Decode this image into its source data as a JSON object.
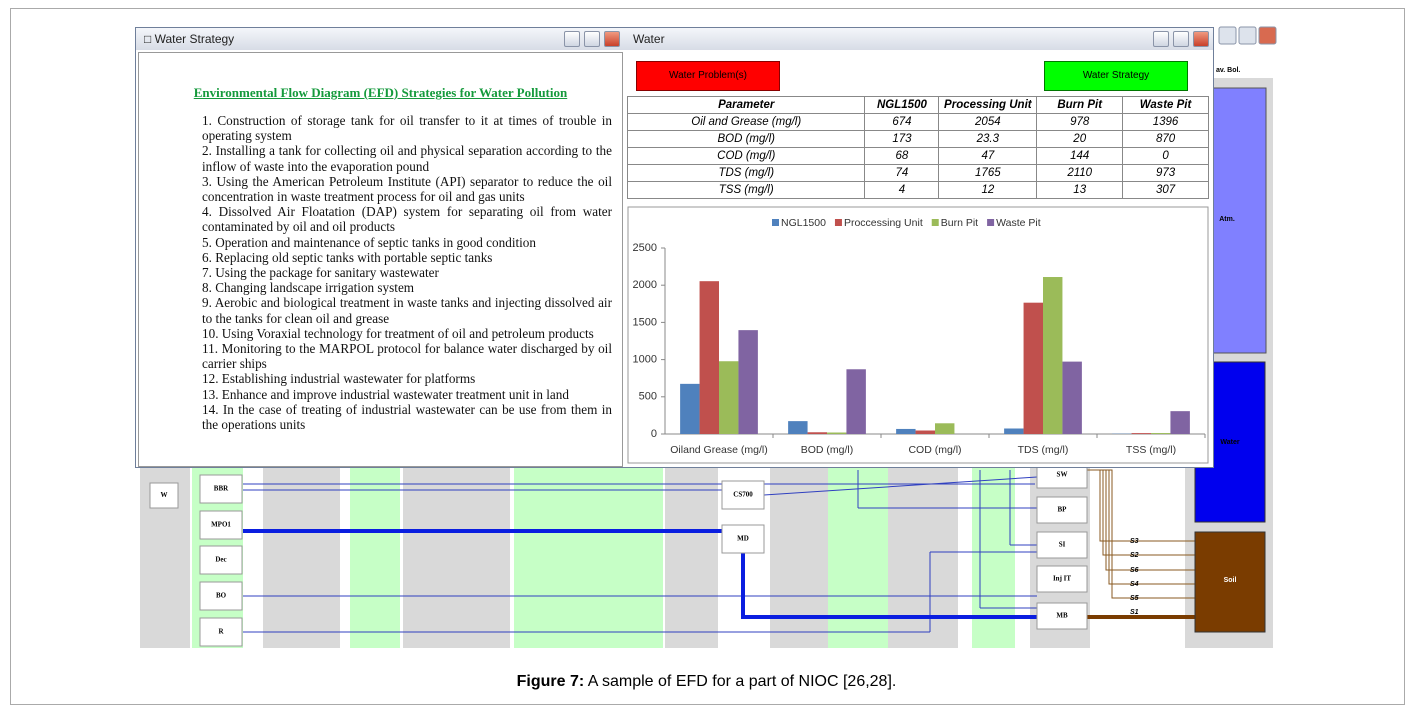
{
  "strategy_window": {
    "title": "Water Strategy",
    "heading": "Environmental Flow Diagram (EFD) Strategies for Water Pollution",
    "items": [
      "1. Construction of storage tank for oil transfer to it at times of trouble in operating system",
      "2. Installing a tank for collecting oil and physical separation according to the inflow of waste into the evaporation pound",
      "3. Using the American Petroleum Institute (API) separator to reduce the oil concentration in waste treatment process for oil and gas units",
      "4. Dissolved Air Floatation (DAP) system for separating oil from water contaminated by oil and oil products",
      "5. Operation and maintenance of septic tanks in good condition",
      "6. Replacing old septic tanks with portable septic tanks",
      "7. Using the package for sanitary wastewater",
      "8. Changing landscape irrigation system",
      "9. Aerobic and biological treatment in waste tanks and injecting dissolved air to the tanks for clean oil and grease",
      "10. Using Voraxial technology for treatment of oil and petroleum products",
      "11. Monitoring to the MARPOL protocol for balance water discharged by oil carrier ships",
      "12. Establishing industrial wastewater for platforms",
      "13. Enhance and improve industrial wastewater treatment unit in land",
      "14. In the case of treating of industrial wastewater can be use from them in the operations units"
    ]
  },
  "water_window": {
    "title": "Water",
    "buttons": [
      "Water Problem(s)",
      "Water Strategy"
    ],
    "table": {
      "header": [
        "Parameter",
        "NGL1500",
        "Processing Unit",
        "Burn Pit",
        "Waste Pit"
      ],
      "rows": [
        [
          "Oil and Grease (mg/l)",
          "674",
          "2054",
          "978",
          "1396"
        ],
        [
          "BOD (mg/l)",
          "173",
          "23.3",
          "20",
          "870"
        ],
        [
          "COD (mg/l)",
          "68",
          "47",
          "144",
          "0"
        ],
        [
          "TDS (mg/l)",
          "74",
          "1765",
          "2110",
          "973"
        ],
        [
          "TSS (mg/l)",
          "4",
          "12",
          "13",
          "307"
        ]
      ]
    }
  },
  "chart_data": {
    "type": "bar",
    "categories": [
      "Oiland Grease (mg/l)",
      "BOD (mg/l)",
      "COD (mg/l)",
      "TDS (mg/l)",
      "TSS (mg/l)"
    ],
    "series": [
      {
        "name": "NGL1500",
        "color": "#4f81bd",
        "values": [
          674,
          173,
          68,
          74,
          4
        ]
      },
      {
        "name": "Proccessing Unit",
        "color": "#c0504d",
        "values": [
          2054,
          23.3,
          47,
          1765,
          12
        ]
      },
      {
        "name": "Burn Pit",
        "color": "#9bbb59",
        "values": [
          978,
          20,
          144,
          2110,
          13
        ]
      },
      {
        "name": "Waste Pit",
        "color": "#8064a2",
        "values": [
          1396,
          870,
          0,
          973,
          307
        ]
      }
    ],
    "ylim": [
      0,
      2500
    ],
    "yticks": [
      0,
      500,
      1000,
      1500,
      2000,
      2500
    ],
    "grid": false,
    "legend": "top"
  },
  "diagram": {
    "header": "av. Bol.",
    "nodes": [
      "W",
      "BBR",
      "MPO1",
      "Dec",
      "BO",
      "R",
      "CS700",
      "MD",
      "SW",
      "BP",
      "SI",
      "Inj IT",
      "MB",
      "Atm.",
      "Water",
      "Soil"
    ],
    "streams": [
      "S3",
      "S2",
      "S6",
      "S4",
      "S5",
      "S1"
    ]
  },
  "caption": {
    "label": "Figure 7:",
    "text": " A sample of EFD for a part of NIOC [26,28]."
  }
}
